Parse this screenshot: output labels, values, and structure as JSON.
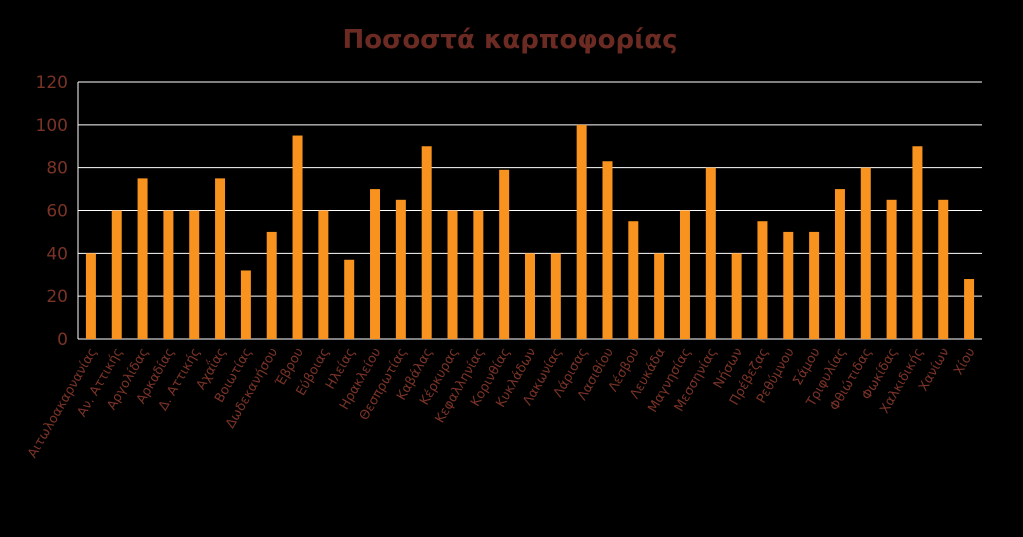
{
  "chart_data": {
    "type": "bar",
    "title": "Ποσοστά καρποφορίας",
    "xlabel": "",
    "ylabel": "",
    "ylim": [
      0,
      120
    ],
    "yticks": [
      0,
      20,
      40,
      60,
      80,
      100,
      120
    ],
    "grid": true,
    "legend": "none",
    "bar_color": "#f7931e",
    "text_color": "#7a3326",
    "background": "#000000",
    "categories": [
      "Αιτωλοακαρνανίας",
      "Αν. Αττικής",
      "Αργολίδας",
      "Αρκαδίας",
      "Δ. Αττικής",
      "Αχαΐας",
      "Βοιωτίας",
      "Δωδεκανήσου",
      "Έβρου",
      "Εύβοιας",
      "Ηλείας",
      "Ηρακλείου",
      "Θεσπρωτίας",
      "Καβάλας",
      "Κέρκυρας",
      "Κεφαλληνίας",
      "Κορινθίας",
      "Κυκλάδων",
      "Λακωνίας",
      "Λάρισας",
      "Λασιθίου",
      "Λέσβου",
      "Λευκάδα",
      "Μαγνησίας",
      "Μεσσηνίας",
      "Νήσων",
      "Πρέβεζας",
      "Ρεθύμνου",
      "Σάμου",
      "Τριφυλίας",
      "Φθιώτιδας",
      "Φωκίδας",
      "Χαλκιδικής",
      "Χανίων",
      "Χίου"
    ],
    "values": [
      40,
      60,
      75,
      60,
      60,
      75,
      32,
      50,
      95,
      60,
      37,
      70,
      65,
      90,
      60,
      60,
      79,
      40,
      40,
      100,
      83,
      55,
      40,
      60,
      80,
      40,
      55,
      50,
      50,
      70,
      80,
      65,
      90,
      65,
      28
    ]
  }
}
